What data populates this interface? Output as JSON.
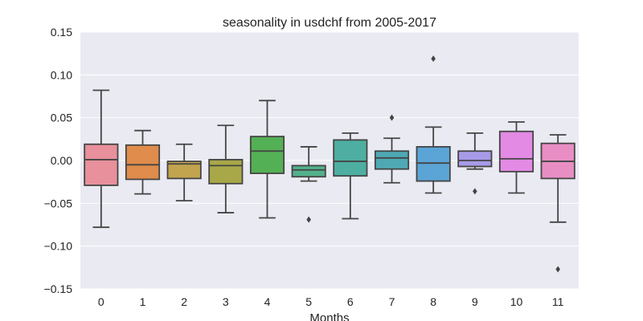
{
  "chart_data": {
    "type": "box",
    "title": "seasonality in usdchf from 2005-2017",
    "xlabel": "Months",
    "ylabel": "",
    "ylim": [
      -0.15,
      0.15
    ],
    "yticks": [
      "0.15",
      "0.10",
      "0.05",
      "0.00",
      "−0.05",
      "−0.10",
      "−0.15"
    ],
    "ytick_values": [
      0.15,
      0.1,
      0.05,
      0.0,
      -0.05,
      -0.1,
      -0.15
    ],
    "categories": [
      "0",
      "1",
      "2",
      "3",
      "4",
      "5",
      "6",
      "7",
      "8",
      "9",
      "10",
      "11"
    ],
    "grid": true,
    "background": "#eaeaf2",
    "boxes": [
      {
        "month": "0",
        "whisker_low": -0.078,
        "q1": -0.029,
        "median": 0.001,
        "q3": 0.019,
        "whisker_high": 0.082,
        "outliers": [],
        "color": "#e8909c"
      },
      {
        "month": "1",
        "whisker_low": -0.039,
        "q1": -0.022,
        "median": -0.005,
        "q3": 0.018,
        "whisker_high": 0.035,
        "outliers": [],
        "color": "#df8c4c"
      },
      {
        "month": "2",
        "whisker_low": -0.047,
        "q1": -0.021,
        "median": -0.004,
        "q3": -0.001,
        "whisker_high": 0.019,
        "outliers": [],
        "color": "#c2a44f"
      },
      {
        "month": "3",
        "whisker_low": -0.061,
        "q1": -0.027,
        "median": -0.006,
        "q3": 0.001,
        "whisker_high": 0.041,
        "outliers": [],
        "color": "#a8a848"
      },
      {
        "month": "4",
        "whisker_low": -0.067,
        "q1": -0.015,
        "median": 0.011,
        "q3": 0.028,
        "whisker_high": 0.07,
        "outliers": [],
        "color": "#54b054"
      },
      {
        "month": "5",
        "whisker_low": -0.024,
        "q1": -0.019,
        "median": -0.011,
        "q3": -0.006,
        "whisker_high": 0.016,
        "outliers": [
          -0.069
        ],
        "color": "#52b18c"
      },
      {
        "month": "6",
        "whisker_low": -0.068,
        "q1": -0.018,
        "median": -0.001,
        "q3": 0.024,
        "whisker_high": 0.032,
        "outliers": [],
        "color": "#4eaea2"
      },
      {
        "month": "7",
        "whisker_low": -0.026,
        "q1": -0.01,
        "median": 0.003,
        "q3": 0.011,
        "whisker_high": 0.026,
        "outliers": [
          0.05
        ],
        "color": "#4ea9b4"
      },
      {
        "month": "8",
        "whisker_low": -0.038,
        "q1": -0.024,
        "median": -0.003,
        "q3": 0.016,
        "whisker_high": 0.039,
        "outliers": [
          0.119
        ],
        "color": "#5aa5d6"
      },
      {
        "month": "9",
        "whisker_low": -0.01,
        "q1": -0.007,
        "median": 0.0,
        "q3": 0.011,
        "whisker_high": 0.032,
        "outliers": [
          -0.036
        ],
        "color": "#a79ae8"
      },
      {
        "month": "10",
        "whisker_low": -0.038,
        "q1": -0.013,
        "median": 0.002,
        "q3": 0.034,
        "whisker_high": 0.045,
        "outliers": [],
        "color": "#e28ae4"
      },
      {
        "month": "11",
        "whisker_low": -0.072,
        "q1": -0.021,
        "median": -0.001,
        "q3": 0.02,
        "whisker_high": 0.03,
        "outliers": [
          -0.127
        ],
        "color": "#e88ec4"
      }
    ]
  }
}
